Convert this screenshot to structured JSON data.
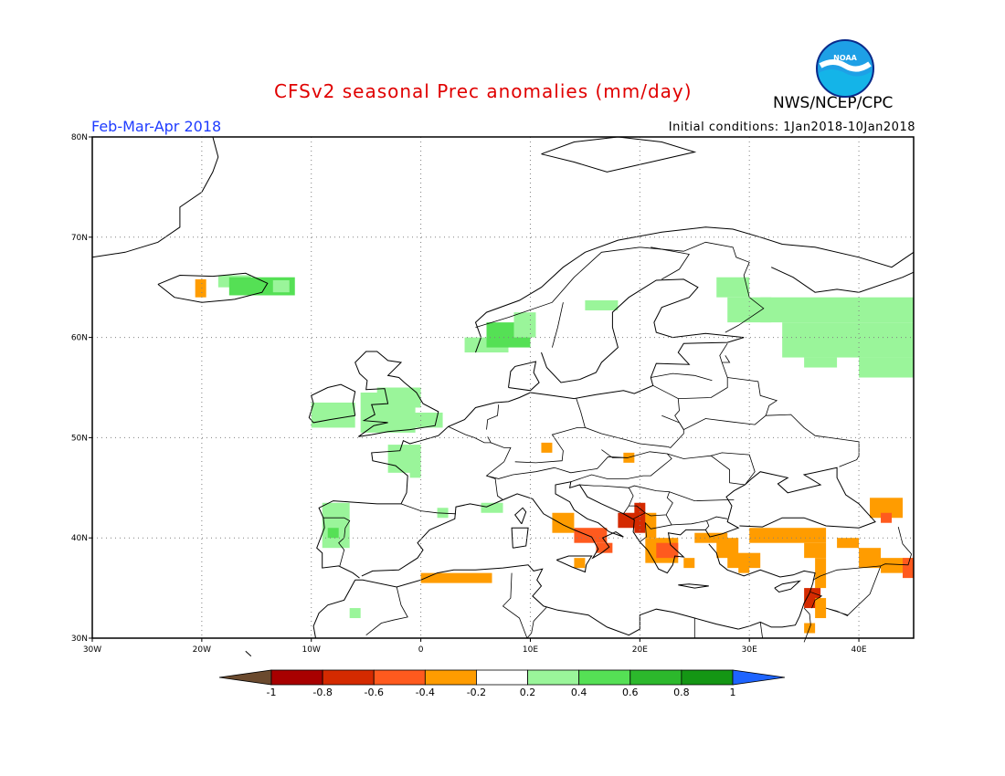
{
  "header": {
    "title": "CFSv2 seasonal Prec anomalies (mm/day)",
    "agency": "NWS/NCEP/CPC",
    "season": "Feb-Mar-Apr 2018",
    "initial_conditions": "Initial conditions: 1Jan2018-10Jan2018",
    "logo_text": "NOAA"
  },
  "map": {
    "lon_ticks": [
      "30W",
      "20W",
      "10W",
      "0",
      "10E",
      "20E",
      "30E",
      "40E"
    ],
    "lat_ticks": [
      "30N",
      "40N",
      "50N",
      "60N",
      "70N",
      "80N"
    ],
    "lon_range": [
      -30,
      45
    ],
    "lat_range": [
      30,
      80
    ]
  },
  "colorbar": {
    "labels": [
      "-1",
      "-0.8",
      "-0.6",
      "-0.4",
      "-0.2",
      "0.2",
      "0.4",
      "0.6",
      "0.8",
      "1"
    ],
    "colors": [
      "#6b4a2e",
      "#a80000",
      "#d42a00",
      "#ff5a1e",
      "#ff9c00",
      "#ffffff",
      "#9af59a",
      "#55e055",
      "#2cb82c",
      "#149614",
      "#1e64ff"
    ]
  },
  "anomaly_colors": {
    "orange": "#ff9c00",
    "red_orange": "#ff5a1e",
    "red": "#d42a00",
    "light_green": "#9af59a",
    "green": "#55e055"
  }
}
